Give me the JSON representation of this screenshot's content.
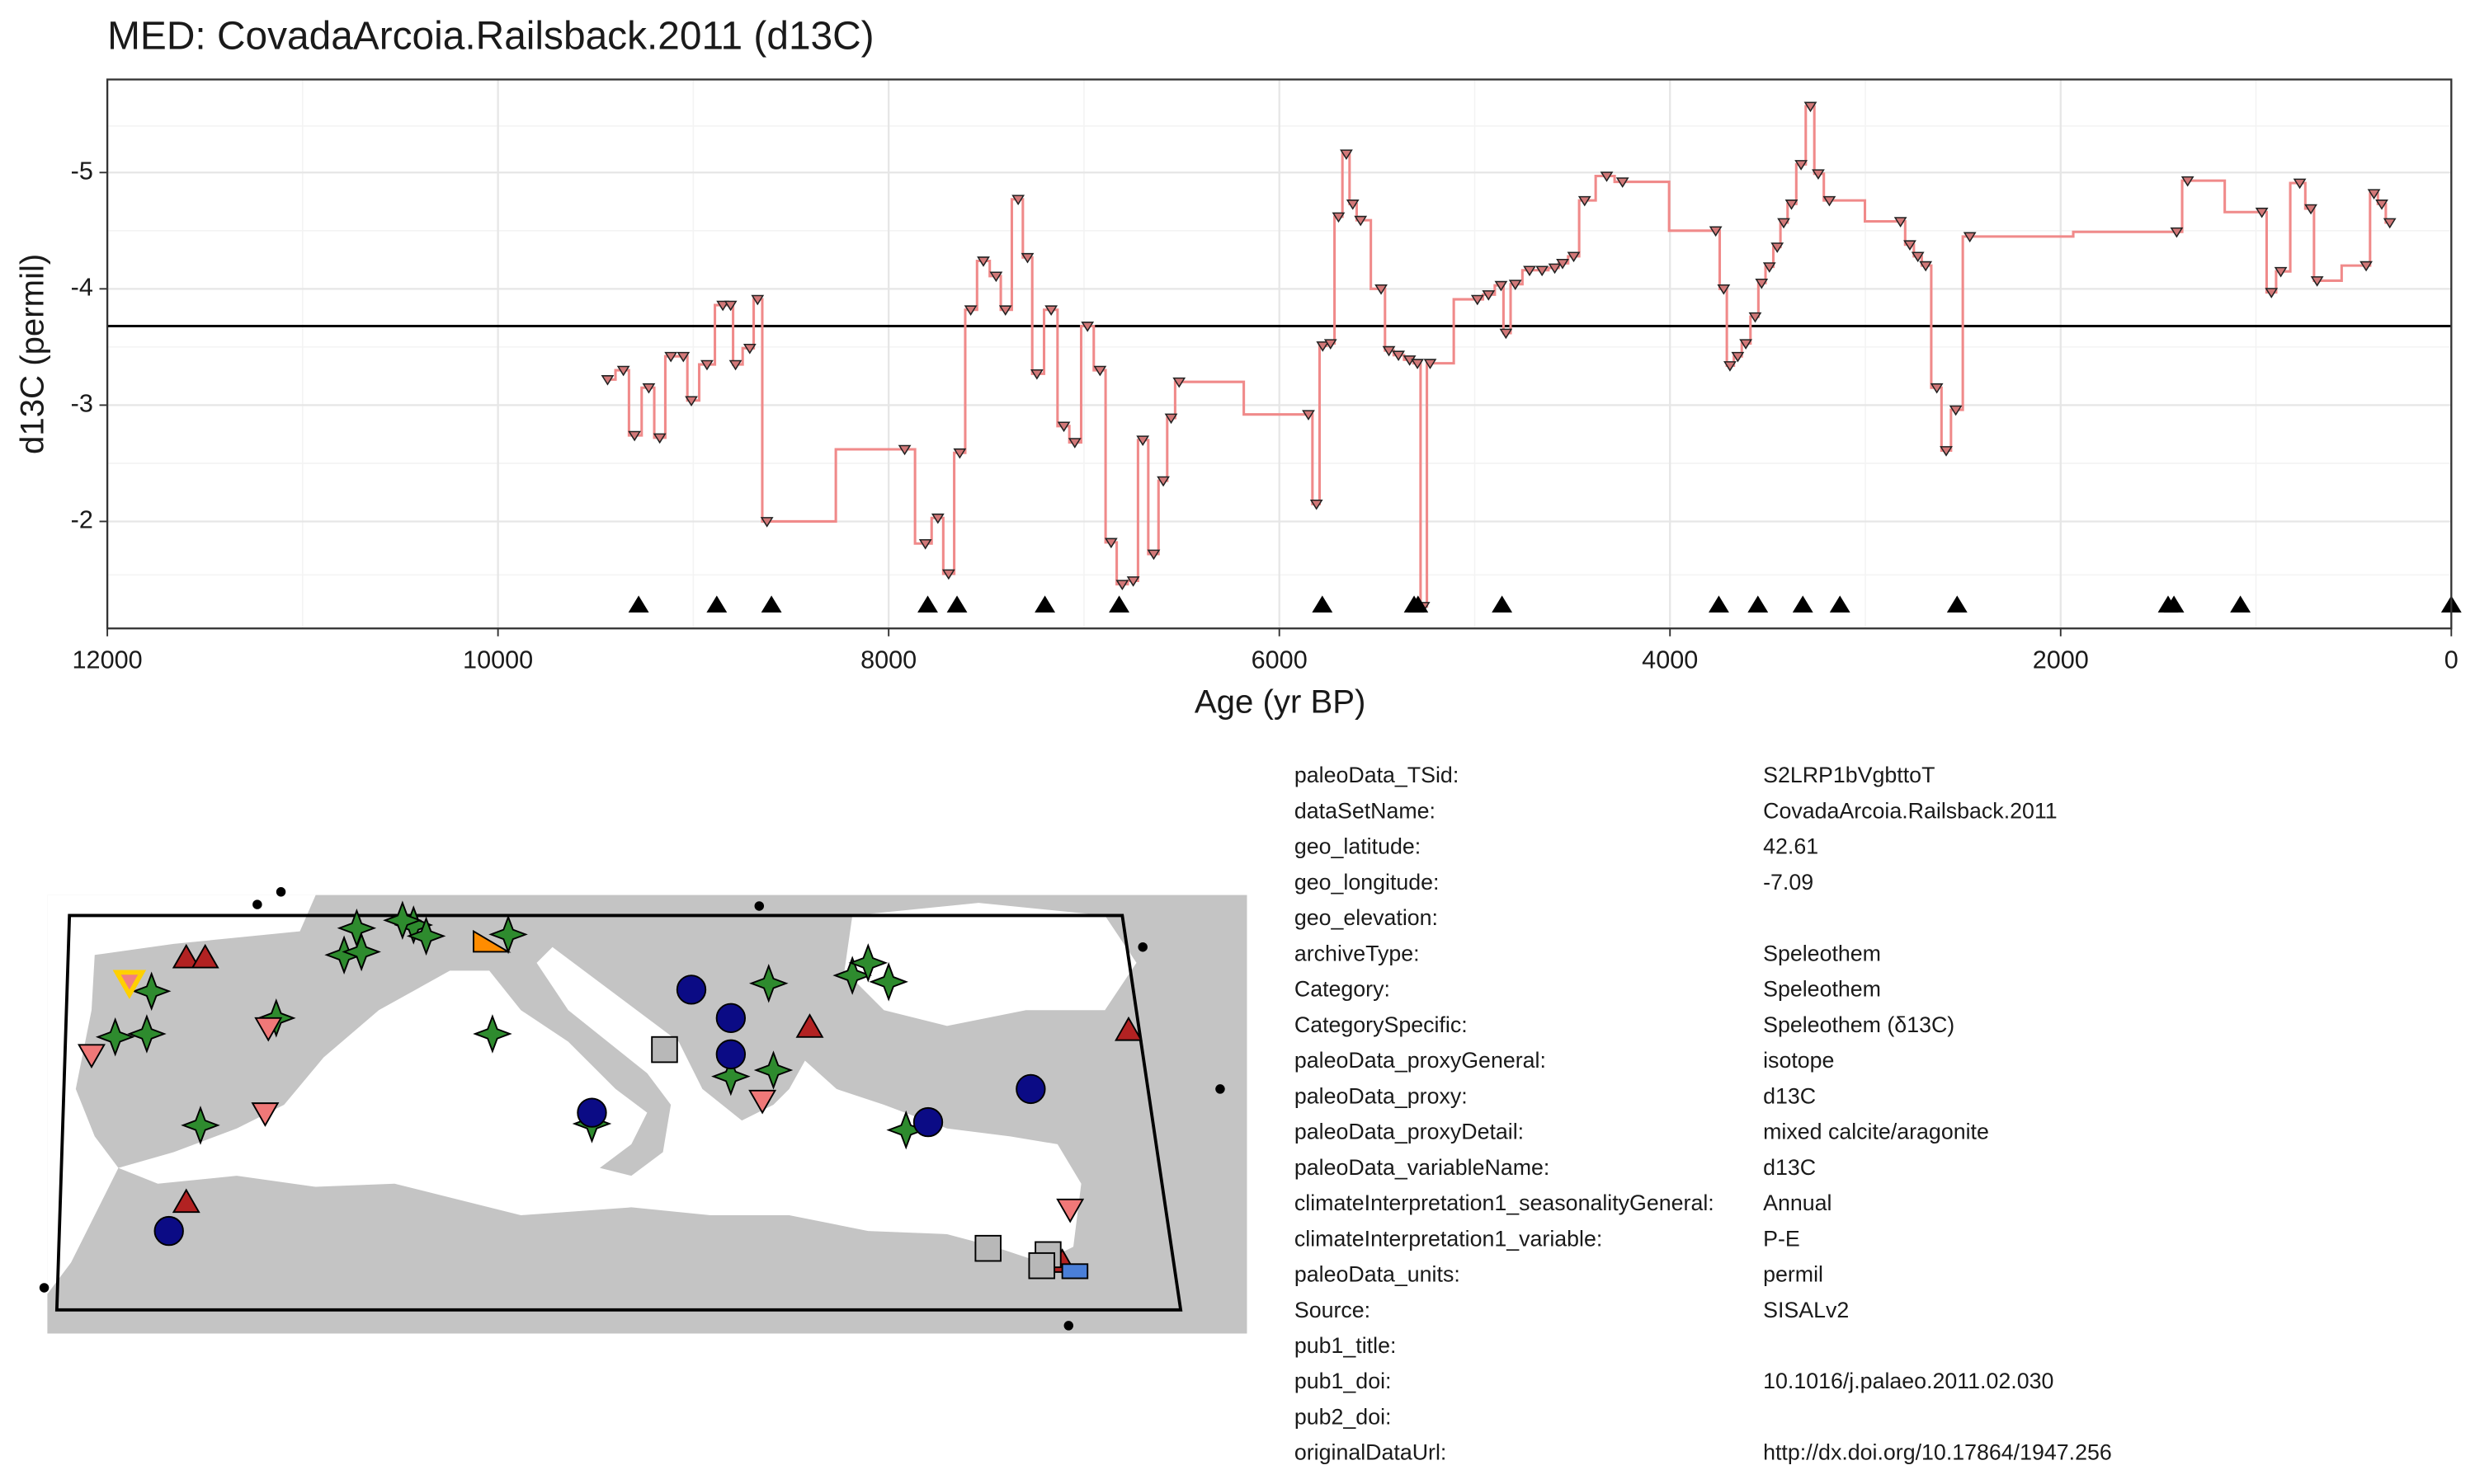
{
  "chart_data": {
    "type": "line",
    "step": "mid",
    "title": "MED: CovadaArcoia.Railsback.2011 (d13C)",
    "xlabel": "Age (yr BP)",
    "ylabel": "d13C (permil)",
    "x": [
      9439,
      9358,
      9301,
      9228,
      9172,
      9115,
      9051,
      9010,
      8930,
      8849,
      8809,
      8784,
      8711,
      8671,
      8623,
      7918,
      7812,
      7748,
      7693,
      7636,
      7580,
      7515,
      7450,
      7402,
      7337,
      7289,
      7241,
      7168,
      7103,
      7047,
      6982,
      6918,
      6861,
      6804,
      6748,
      6699,
      6643,
      6594,
      6554,
      6513,
      5851,
      5810,
      5778,
      5738,
      5697,
      5657,
      5624,
      5584,
      5479,
      5439,
      5390,
      5333,
      5293,
      5261,
      5228,
      4986,
      4929,
      4865,
      4840,
      4792,
      4719,
      4655,
      4590,
      4550,
      4493,
      4437,
      4324,
      4243,
      3766,
      3725,
      3693,
      3653,
      3612,
      3564,
      3531,
      3491,
      3451,
      3418,
      3378,
      3329,
      3281,
      3241,
      3184,
      2820,
      2772,
      2731,
      2691,
      2634,
      2586,
      2537,
      2465,
      1406,
      1350,
      970,
      921,
      873,
      776,
      719,
      687,
      436,
      396,
      356,
      315
    ],
    "values": [
      -3.22,
      -3.3,
      -2.74,
      -3.15,
      -2.72,
      -3.42,
      -3.42,
      -3.04,
      -3.35,
      -3.86,
      -3.86,
      -3.35,
      -3.49,
      -3.91,
      -2.0,
      -2.62,
      -1.81,
      -2.03,
      -1.55,
      -2.59,
      -3.82,
      -4.24,
      -4.11,
      -3.82,
      -4.77,
      -4.27,
      -3.27,
      -3.82,
      -2.82,
      -2.68,
      -3.68,
      -3.3,
      -1.82,
      -1.46,
      -1.49,
      -2.7,
      -1.72,
      -2.35,
      -2.89,
      -3.2,
      -2.92,
      -2.15,
      -3.51,
      -3.53,
      -4.62,
      -5.16,
      -4.73,
      -4.59,
      -4.0,
      -3.47,
      -3.43,
      -3.39,
      -3.36,
      -1.27,
      -3.36,
      -3.91,
      -3.95,
      -4.03,
      -3.62,
      -4.04,
      -4.16,
      -4.16,
      -4.18,
      -4.22,
      -4.28,
      -4.76,
      -4.97,
      -4.92,
      -4.5,
      -4.0,
      -3.34,
      -3.42,
      -3.53,
      -3.76,
      -4.05,
      -4.19,
      -4.36,
      -4.57,
      -4.73,
      -5.07,
      -5.57,
      -4.99,
      -4.76,
      -4.58,
      -4.38,
      -4.28,
      -4.2,
      -3.15,
      -2.61,
      -2.96,
      -4.45,
      -4.49,
      -4.93,
      -4.66,
      -3.97,
      -4.15,
      -4.91,
      -4.69,
      -4.07,
      -4.2,
      -4.82,
      -4.73,
      -4.57
    ],
    "color": "#f08a8a",
    "marker_color": "#d27878",
    "xlim": [
      12000,
      0
    ],
    "xticks": [
      12000,
      10000,
      8000,
      6000,
      4000,
      2000,
      0
    ],
    "ylim": [
      -1.08,
      -5.8
    ],
    "yticks": [
      -5,
      -4,
      -3,
      -2
    ],
    "grid": true,
    "hline": -3.68,
    "age_markers": [
      9280,
      8880,
      8600,
      7800,
      7650,
      7200,
      6820,
      5780,
      5310,
      5290,
      4860,
      3750,
      3550,
      3320,
      3130,
      2530,
      1450,
      1420,
      1080,
      0
    ]
  },
  "metadata": [
    {
      "key": "paleoData_TSid:",
      "value": "S2LRP1bVgbttoT"
    },
    {
      "key": "dataSetName:",
      "value": "CovadaArcoia.Railsback.2011"
    },
    {
      "key": "geo_latitude:",
      "value": "42.61"
    },
    {
      "key": "geo_longitude:",
      "value": "-7.09"
    },
    {
      "key": "geo_elevation:"
    },
    {
      "key": "archiveType:",
      "value": "Speleothem"
    },
    {
      "key": "Category:",
      "value": "Speleothem"
    },
    {
      "key": "CategorySpecific:",
      "value": "Speleothem (δ13C)"
    },
    {
      "key": "paleoData_proxyGeneral:",
      "value": "isotope"
    },
    {
      "key": "paleoData_proxy:",
      "value": "d13C"
    },
    {
      "key": "paleoData_proxyDetail:",
      "value": "mixed calcite/aragonite"
    },
    {
      "key": "paleoData_variableName:",
      "value": "d13C"
    },
    {
      "key": "climateInterpretation1_seasonalityGeneral:",
      "value": "Annual"
    },
    {
      "key": "climateInterpretation1_variable:",
      "value": "P-E"
    },
    {
      "key": "paleoData_units:",
      "value": "permil"
    },
    {
      "key": "Source:",
      "value": "SISALv2"
    },
    {
      "key": "pub1_title:"
    },
    {
      "key": "pub1_doi:",
      "value": "10.1016/j.palaeo.2011.02.030"
    },
    {
      "key": "pub2_doi:"
    },
    {
      "key": "originalDataUrl:",
      "value": "http://dx.doi.org/10.17864/1947.256"
    }
  ]
}
